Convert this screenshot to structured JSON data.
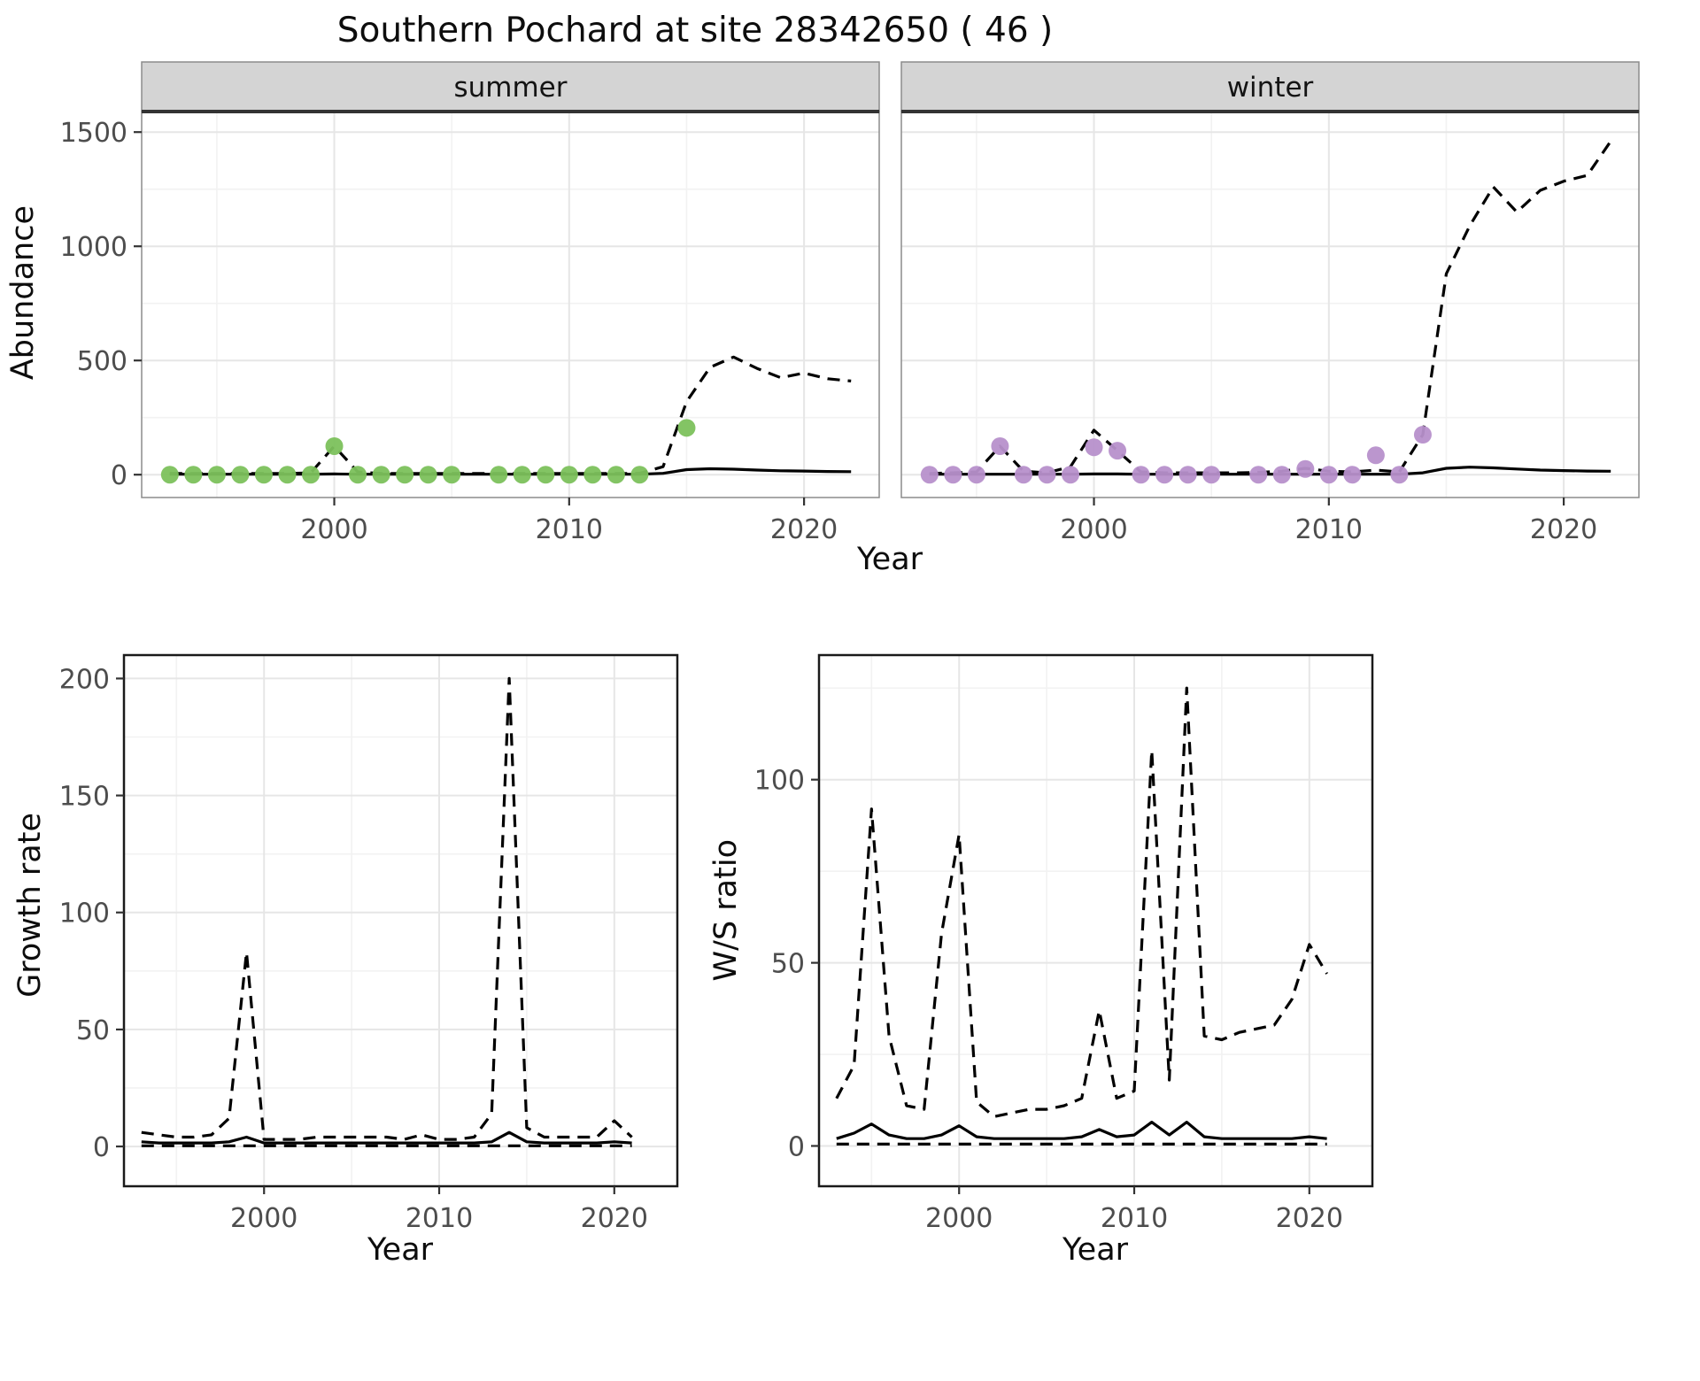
{
  "title": "Southern Pochard at site 28342650 ( 46 )",
  "top_chart": {
    "ylabel": "Abundance",
    "xlabel": "Year"
  },
  "growth_chart": {
    "ylabel": "Growth rate",
    "xlabel": "Year"
  },
  "ws_chart": {
    "ylabel": "W/S ratio",
    "xlabel": "Year"
  },
  "colors": {
    "observed_summer": "#7cc15c",
    "observed_winter": "#b790cb",
    "line": "#000000",
    "strip_bg": "#d4d4d4",
    "grid_major": "#e6e6e6",
    "grid_minor": "#f2f2f2"
  },
  "chart_data": [
    {
      "id": "abundance-summer",
      "type": "line",
      "facet_label": "summer",
      "xlabel": "Year",
      "ylabel": "Abundance",
      "xlim": [
        1991.8,
        2023.2
      ],
      "ylim": [
        -100,
        1590
      ],
      "xticks": [
        2000,
        2010,
        2020
      ],
      "yticks": [
        0,
        500,
        1000,
        1500
      ],
      "series": [
        {
          "name": "predicted-upper-ci",
          "style": "dashed",
          "x": [
            1993,
            1994,
            1995,
            1996,
            1997,
            1998,
            1999,
            2000,
            2001,
            2002,
            2003,
            2004,
            2005,
            2006,
            2007,
            2008,
            2009,
            2010,
            2011,
            2012,
            2013,
            2014,
            2015,
            2016,
            2017,
            2018,
            2019,
            2020,
            2021,
            2022
          ],
          "y": [
            6,
            5,
            5,
            5,
            5,
            5,
            8,
            125,
            12,
            5,
            5,
            5,
            5,
            5,
            5,
            5,
            5,
            5,
            5,
            5,
            6,
            35,
            320,
            470,
            515,
            465,
            425,
            445,
            420,
            410
          ]
        },
        {
          "name": "predicted-median",
          "style": "solid",
          "x": [
            1993,
            1994,
            1995,
            1996,
            1997,
            1998,
            1999,
            2000,
            2001,
            2002,
            2003,
            2004,
            2005,
            2006,
            2007,
            2008,
            2009,
            2010,
            2011,
            2012,
            2013,
            2014,
            2015,
            2016,
            2017,
            2018,
            2019,
            2020,
            2021,
            2022
          ],
          "y": [
            2,
            2,
            2,
            2,
            2,
            2,
            2,
            3,
            2,
            2,
            2,
            2,
            2,
            2,
            2,
            2,
            2,
            2,
            2,
            2,
            2,
            6,
            22,
            26,
            24,
            20,
            17,
            16,
            14,
            13
          ]
        },
        {
          "name": "observed-count",
          "style": "points",
          "color": "#7cc15c",
          "x": [
            1993,
            1994,
            1995,
            1996,
            1997,
            1998,
            1999,
            2000,
            2001,
            2002,
            2003,
            2004,
            2005,
            2007,
            2008,
            2009,
            2010,
            2011,
            2012,
            2013,
            2015
          ],
          "y": [
            0,
            0,
            0,
            0,
            0,
            0,
            0,
            125,
            0,
            0,
            0,
            0,
            0,
            0,
            0,
            0,
            0,
            0,
            0,
            0,
            205
          ]
        }
      ]
    },
    {
      "id": "abundance-winter",
      "type": "line",
      "facet_label": "winter",
      "xlabel": "Year",
      "ylabel": "Abundance",
      "xlim": [
        1991.8,
        2023.2
      ],
      "ylim": [
        -100,
        1590
      ],
      "xticks": [
        2000,
        2010,
        2020
      ],
      "yticks": [
        0,
        500,
        1000,
        1500
      ],
      "series": [
        {
          "name": "predicted-upper-ci",
          "style": "dashed",
          "x": [
            1993,
            1994,
            1995,
            1996,
            1997,
            1998,
            1999,
            2000,
            2001,
            2002,
            2003,
            2004,
            2005,
            2006,
            2007,
            2008,
            2009,
            2010,
            2011,
            2012,
            2013,
            2014,
            2015,
            2016,
            2017,
            2018,
            2019,
            2020,
            2021,
            2022
          ],
          "y": [
            5,
            8,
            12,
            125,
            15,
            8,
            35,
            195,
            105,
            12,
            8,
            8,
            8,
            8,
            10,
            15,
            28,
            15,
            12,
            20,
            12,
            175,
            880,
            1090,
            1260,
            1150,
            1245,
            1285,
            1310,
            1460
          ]
        },
        {
          "name": "predicted-median",
          "style": "solid",
          "x": [
            1993,
            1994,
            1995,
            1996,
            1997,
            1998,
            1999,
            2000,
            2001,
            2002,
            2003,
            2004,
            2005,
            2006,
            2007,
            2008,
            2009,
            2010,
            2011,
            2012,
            2013,
            2014,
            2015,
            2016,
            2017,
            2018,
            2019,
            2020,
            2021,
            2022
          ],
          "y": [
            2,
            2,
            2,
            2,
            2,
            2,
            2,
            3,
            3,
            2,
            2,
            2,
            2,
            2,
            2,
            2,
            2,
            2,
            2,
            2,
            2,
            8,
            28,
            33,
            30,
            25,
            20,
            18,
            16,
            15
          ]
        },
        {
          "name": "observed-count",
          "style": "points",
          "color": "#b790cb",
          "x": [
            1993,
            1994,
            1995,
            1996,
            1997,
            1998,
            1999,
            2000,
            2001,
            2002,
            2003,
            2004,
            2005,
            2007,
            2008,
            2009,
            2010,
            2011,
            2012,
            2013,
            2014
          ],
          "y": [
            0,
            0,
            0,
            125,
            0,
            0,
            0,
            120,
            105,
            0,
            0,
            0,
            0,
            0,
            0,
            25,
            0,
            0,
            85,
            0,
            175
          ]
        }
      ]
    },
    {
      "id": "growth-rate",
      "type": "line",
      "facet_label": "",
      "xlabel": "Year",
      "ylabel": "Growth rate",
      "xlim": [
        1992,
        2023.6
      ],
      "ylim": [
        -17,
        210
      ],
      "xticks": [
        2000,
        2010,
        2020
      ],
      "yticks": [
        0,
        50,
        100,
        150,
        200
      ],
      "series": [
        {
          "name": "growth-upper-ci",
          "style": "dashed",
          "x": [
            1993,
            1994,
            1995,
            1996,
            1997,
            1998,
            1999,
            2000,
            2001,
            2002,
            2003,
            2004,
            2005,
            2006,
            2007,
            2008,
            2009,
            2010,
            2011,
            2012,
            2013,
            2014,
            2015,
            2016,
            2017,
            2018,
            2019,
            2020,
            2021
          ],
          "y": [
            6,
            5,
            4,
            4,
            5,
            12,
            83,
            3,
            3,
            3,
            4,
            4,
            4,
            4,
            4,
            3,
            5,
            3,
            3,
            4,
            14,
            200,
            8,
            4,
            4,
            4,
            4,
            11,
            4
          ]
        },
        {
          "name": "growth-lower-ci",
          "style": "dashed",
          "x": [
            1993,
            1994,
            1995,
            1996,
            1997,
            1998,
            1999,
            2000,
            2001,
            2002,
            2003,
            2004,
            2005,
            2006,
            2007,
            2008,
            2009,
            2010,
            2011,
            2012,
            2013,
            2014,
            2015,
            2016,
            2017,
            2018,
            2019,
            2020,
            2021
          ],
          "y": [
            0.3,
            0.3,
            0.3,
            0.3,
            0.3,
            0.3,
            0.3,
            0.3,
            0.3,
            0.3,
            0.3,
            0.3,
            0.3,
            0.3,
            0.3,
            0.3,
            0.3,
            0.3,
            0.3,
            0.3,
            0.3,
            0.3,
            0.3,
            0.3,
            0.3,
            0.3,
            0.3,
            0.3,
            0.3
          ]
        },
        {
          "name": "growth-median",
          "style": "solid",
          "x": [
            1993,
            1994,
            1995,
            1996,
            1997,
            1998,
            1999,
            2000,
            2001,
            2002,
            2003,
            2004,
            2005,
            2006,
            2007,
            2008,
            2009,
            2010,
            2011,
            2012,
            2013,
            2014,
            2015,
            2016,
            2017,
            2018,
            2019,
            2020,
            2021
          ],
          "y": [
            2,
            1.5,
            1.5,
            1.5,
            1.5,
            2,
            4,
            1.5,
            1.5,
            1.5,
            1.5,
            1.5,
            1.5,
            1.5,
            1.5,
            1.5,
            1.5,
            1.5,
            1.5,
            1.5,
            2,
            6,
            2,
            1.5,
            1.5,
            1.5,
            1.5,
            2,
            1.5
          ]
        }
      ]
    },
    {
      "id": "ws-ratio",
      "type": "line",
      "facet_label": "",
      "xlabel": "Year",
      "ylabel": "W/S ratio",
      "xlim": [
        1992,
        2023.6
      ],
      "ylim": [
        -11,
        134
      ],
      "xticks": [
        2000,
        2010,
        2020
      ],
      "yticks": [
        0,
        50,
        100
      ],
      "series": [
        {
          "name": "ratio-upper-ci",
          "style": "dashed",
          "x": [
            1993,
            1994,
            1995,
            1996,
            1997,
            1998,
            1999,
            2000,
            2001,
            2002,
            2003,
            2004,
            2005,
            2006,
            2007,
            2008,
            2009,
            2010,
            2011,
            2012,
            2013,
            2014,
            2015,
            2016,
            2017,
            2018,
            2019,
            2020,
            2021
          ],
          "y": [
            13,
            22,
            92,
            30,
            11,
            10,
            58,
            85,
            12,
            8,
            9,
            10,
            10,
            11,
            13,
            37,
            13,
            15,
            108,
            18,
            125,
            30,
            29,
            31,
            32,
            33,
            40,
            55,
            47
          ]
        },
        {
          "name": "ratio-lower-ci",
          "style": "dashed",
          "x": [
            1993,
            1994,
            1995,
            1996,
            1997,
            1998,
            1999,
            2000,
            2001,
            2002,
            2003,
            2004,
            2005,
            2006,
            2007,
            2008,
            2009,
            2010,
            2011,
            2012,
            2013,
            2014,
            2015,
            2016,
            2017,
            2018,
            2019,
            2020,
            2021
          ],
          "y": [
            0.5,
            0.5,
            0.5,
            0.5,
            0.5,
            0.5,
            0.5,
            0.5,
            0.5,
            0.5,
            0.5,
            0.5,
            0.5,
            0.5,
            0.5,
            0.5,
            0.5,
            0.5,
            0.5,
            0.5,
            0.5,
            0.5,
            0.5,
            0.5,
            0.5,
            0.5,
            0.5,
            0.5,
            0.5
          ]
        },
        {
          "name": "ratio-median",
          "style": "solid",
          "x": [
            1993,
            1994,
            1995,
            1996,
            1997,
            1998,
            1999,
            2000,
            2001,
            2002,
            2003,
            2004,
            2005,
            2006,
            2007,
            2008,
            2009,
            2010,
            2011,
            2012,
            2013,
            2014,
            2015,
            2016,
            2017,
            2018,
            2019,
            2020,
            2021
          ],
          "y": [
            2,
            3.5,
            6,
            3,
            2,
            2,
            3,
            5.5,
            2.5,
            2,
            2,
            2,
            2,
            2,
            2.5,
            4.5,
            2.5,
            3,
            6.5,
            3,
            6.5,
            2.5,
            2,
            2,
            2,
            2,
            2,
            2.5,
            2
          ]
        }
      ]
    }
  ]
}
